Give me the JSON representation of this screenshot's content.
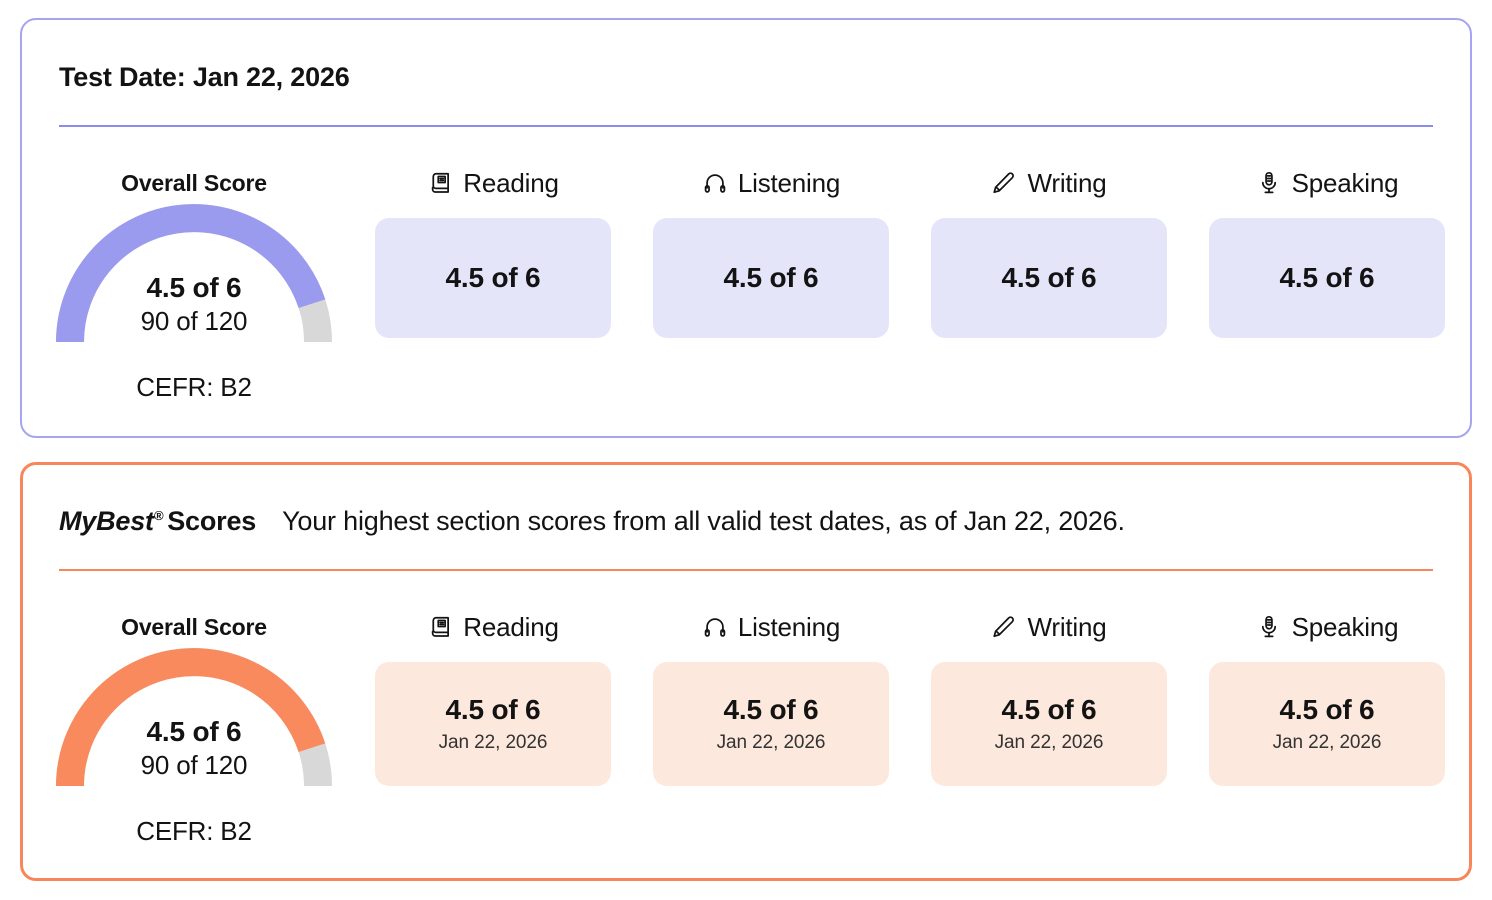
{
  "page": {
    "background": "#ffffff"
  },
  "test_card": {
    "title": "Test Date: Jan 22, 2026",
    "colors": {
      "border": "#a5a5f1",
      "divider": "#8c8cec",
      "arc": "#9a9aee",
      "arc_rest": "#d8d8d8",
      "box_bg": "#e5e5fa"
    },
    "overall": {
      "label": "Overall Score",
      "band_score": "4.5 of 6",
      "scaled_score": "90 of 120",
      "cefr": "CEFR: B2",
      "gauge_percent": 90
    },
    "sections": [
      {
        "icon": "book-icon",
        "label": "Reading",
        "score": "4.5 of 6"
      },
      {
        "icon": "headphones-icon",
        "label": "Listening",
        "score": "4.5 of 6"
      },
      {
        "icon": "pencil-icon",
        "label": "Writing",
        "score": "4.5 of 6"
      },
      {
        "icon": "microphone-icon",
        "label": "Speaking",
        "score": "4.5 of 6"
      }
    ]
  },
  "mybest_card": {
    "brand": "MyBest",
    "reg_mark": "®",
    "title_suffix": "Scores",
    "subtitle": "Your highest section scores from all valid test dates, as of Jan 22, 2026.",
    "colors": {
      "border": "#f8865b",
      "divider": "#f8865b",
      "arc": "#f98a5e",
      "arc_rest": "#d8d8d8",
      "box_bg": "#fce8dd"
    },
    "overall": {
      "label": "Overall Score",
      "band_score": "4.5 of 6",
      "scaled_score": "90 of 120",
      "cefr": "CEFR: B2",
      "gauge_percent": 90
    },
    "sections": [
      {
        "icon": "book-icon",
        "label": "Reading",
        "score": "4.5 of 6",
        "date": "Jan 22, 2026"
      },
      {
        "icon": "headphones-icon",
        "label": "Listening",
        "score": "4.5 of 6",
        "date": "Jan 22, 2026"
      },
      {
        "icon": "pencil-icon",
        "label": "Writing",
        "score": "4.5 of 6",
        "date": "Jan 22, 2026"
      },
      {
        "icon": "microphone-icon",
        "label": "Speaking",
        "score": "4.5 of 6",
        "date": "Jan 22, 2026"
      }
    ]
  }
}
